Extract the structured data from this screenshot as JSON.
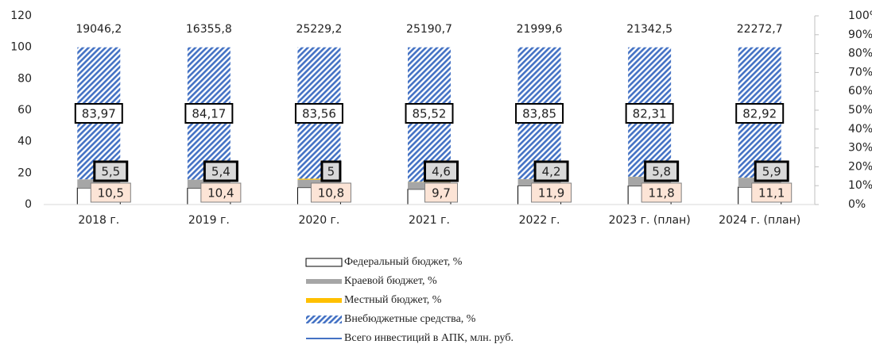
{
  "chart_data": {
    "type": "bar",
    "stacked": true,
    "categories": [
      "2018 г.",
      "2019 г.",
      "2020 г.",
      "2021 г.",
      "2022 г.",
      "2023 г. (план)",
      "2024 г.  (план)"
    ],
    "series": [
      {
        "name": "Федеральный бюджет, %",
        "color": "#ffffff",
        "values": [
          10.5,
          10.4,
          10.8,
          9.7,
          11.9,
          11.8,
          11.1
        ],
        "value_labels": [
          "10,5",
          "10,4",
          "10,8",
          "9,7",
          "11,9",
          "11,8",
          "11,1"
        ]
      },
      {
        "name": "Краевой бюджет, %",
        "color": "#a6a6a6",
        "values": [
          5.5,
          5.4,
          5,
          4.6,
          4.2,
          5.8,
          5.9
        ],
        "value_labels": [
          "5,5",
          "5,4",
          "5",
          "4,6",
          "4,2",
          "5,8",
          "5,9"
        ]
      },
      {
        "name": "Местный бюджет, %",
        "color": "#ffc000",
        "values": [
          0.03,
          0.03,
          0.64,
          0.18,
          0.05,
          0.09,
          0.08
        ]
      },
      {
        "name": "Внебюджетные средства, %",
        "color": "#4472c4",
        "pattern": "hatch",
        "values": [
          83.97,
          84.17,
          83.56,
          85.52,
          83.85,
          82.31,
          82.92
        ],
        "value_labels": [
          "83,97",
          "84,17",
          "83,56",
          "85,52",
          "83,85",
          "82,31",
          "82,92"
        ]
      },
      {
        "name": "Всего инвестиций в АПК, млн. руб.",
        "color": "#4472c4",
        "type": "line",
        "values": [
          19046.2,
          16355.8,
          25229.2,
          25190.7,
          21999.6,
          21342.5,
          22272.7
        ],
        "value_labels": [
          "19046,2",
          "16355,8",
          "25229,2",
          "25190,7",
          "21999,6",
          "21342,5",
          "22272,7"
        ]
      }
    ],
    "ylim": [
      0,
      120
    ],
    "yticks": [
      0,
      20,
      40,
      60,
      80,
      100,
      120
    ],
    "y2lim": [
      0,
      100
    ],
    "y2ticks": [
      {
        "value": 0,
        "label": "0%"
      },
      {
        "value": 10,
        "label": "10%"
      },
      {
        "value": 20,
        "label": "20%"
      },
      {
        "value": 30,
        "label": "30%"
      },
      {
        "value": 40,
        "label": "40%"
      },
      {
        "value": 50,
        "label": "50%"
      },
      {
        "value": 60,
        "label": "60%"
      },
      {
        "value": 70,
        "label": "70%"
      },
      {
        "value": 80,
        "label": "80%"
      },
      {
        "value": 90,
        "label": "90%"
      },
      {
        "value": 100,
        "label": "100%"
      }
    ]
  }
}
